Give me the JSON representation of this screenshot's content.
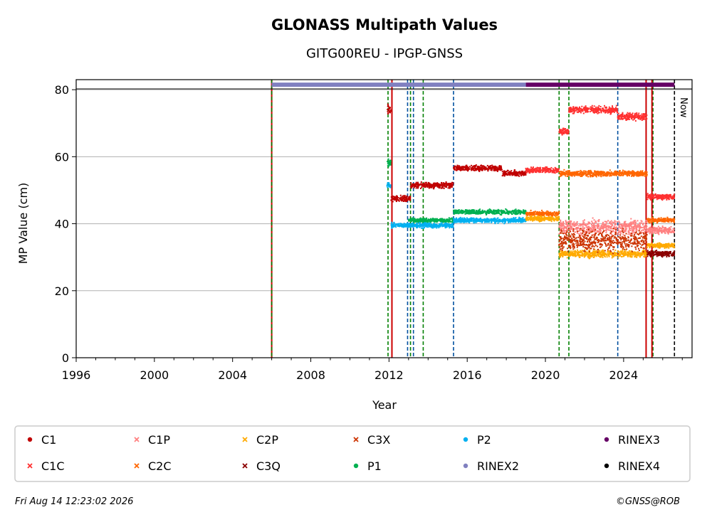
{
  "chart_data": {
    "type": "scatter",
    "title": "GLONASS Multipath Values",
    "subtitle": "GITG00REU - IPGP-GNSS",
    "xlabel": "Year",
    "ylabel": "MP Value (cm)",
    "xlim": [
      1996,
      2027.5
    ],
    "ylim": [
      0,
      83
    ],
    "x_ticks": [
      "1996",
      "2000",
      "2004",
      "2008",
      "2012",
      "2016",
      "2020",
      "2024"
    ],
    "y_ticks": [
      "0",
      "20",
      "40",
      "60",
      "80"
    ],
    "grid": "horizontal",
    "now_label": "Now",
    "now_year": 2026.6,
    "legend": {
      "placement": "bottom",
      "entries": [
        {
          "name": "C1",
          "color": "#c00000",
          "marker": "dot"
        },
        {
          "name": "C1P",
          "color": "#ff8080",
          "marker": "x"
        },
        {
          "name": "C2P",
          "color": "#ffaa00",
          "marker": "x"
        },
        {
          "name": "C3X",
          "color": "#cc3300",
          "marker": "x"
        },
        {
          "name": "P2",
          "color": "#00b0f0",
          "marker": "dot"
        },
        {
          "name": "RINEX3",
          "color": "#660066",
          "marker": "dot"
        },
        {
          "name": "C1C",
          "color": "#ff3030",
          "marker": "x"
        },
        {
          "name": "C2C",
          "color": "#ff6600",
          "marker": "x"
        },
        {
          "name": "C3Q",
          "color": "#8b0000",
          "marker": "x"
        },
        {
          "name": "P1",
          "color": "#00b050",
          "marker": "dot"
        },
        {
          "name": "RINEX2",
          "color": "#8080c0",
          "marker": "dot"
        },
        {
          "name": "RINEX4",
          "color": "#000000",
          "marker": "dot"
        }
      ]
    },
    "series": [
      {
        "name": "C1",
        "color": "#c00000",
        "segments": [
          {
            "x": [
              2011.9,
              2012.1
            ],
            "y": 74,
            "spread": 2.5
          },
          {
            "x": [
              2012.1,
              2013.1
            ],
            "y": 47.5,
            "spread": 1.2
          },
          {
            "x": [
              2013.1,
              2015.3
            ],
            "y": 51.5,
            "spread": 1.2
          },
          {
            "x": [
              2015.3,
              2017.8
            ],
            "y": 56.5,
            "spread": 1.2
          },
          {
            "x": [
              2017.8,
              2019.0
            ],
            "y": 55,
            "spread": 1.2
          }
        ]
      },
      {
        "name": "C1C",
        "color": "#ff3030",
        "segments": [
          {
            "x": [
              2019.0,
              2020.7
            ],
            "y": 56,
            "spread": 1.2
          },
          {
            "x": [
              2020.7,
              2021.2
            ],
            "y": 67.5,
            "spread": 1.5
          },
          {
            "x": [
              2021.2,
              2023.7
            ],
            "y": 74,
            "spread": 1.5
          },
          {
            "x": [
              2023.7,
              2025.2
            ],
            "y": 72,
            "spread": 1.5
          },
          {
            "x": [
              2025.2,
              2026.6
            ],
            "y": 48,
            "spread": 1.2
          }
        ]
      },
      {
        "name": "P1",
        "color": "#00b050",
        "segments": [
          {
            "x": [
              2011.9,
              2012.1
            ],
            "y": 58,
            "spread": 1.5
          },
          {
            "x": [
              2013.0,
              2015.3
            ],
            "y": 41,
            "spread": 0.9
          },
          {
            "x": [
              2015.3,
              2019.0
            ],
            "y": 43.5,
            "spread": 1.0
          }
        ]
      },
      {
        "name": "P2",
        "color": "#00b0f0",
        "segments": [
          {
            "x": [
              2011.9,
              2012.1
            ],
            "y": 51.5,
            "spread": 1.5
          },
          {
            "x": [
              2012.1,
              2015.3
            ],
            "y": 39.5,
            "spread": 1.0
          },
          {
            "x": [
              2015.3,
              2019.0
            ],
            "y": 41,
            "spread": 1.0
          }
        ]
      },
      {
        "name": "C2C",
        "color": "#ff6600",
        "segments": [
          {
            "x": [
              2019.0,
              2020.7
            ],
            "y": 43,
            "spread": 1.0
          },
          {
            "x": [
              2020.7,
              2025.2
            ],
            "y": 55,
            "spread": 1.2
          },
          {
            "x": [
              2025.2,
              2026.6
            ],
            "y": 41,
            "spread": 1.0
          }
        ]
      },
      {
        "name": "C2P",
        "color": "#ffaa00",
        "segments": [
          {
            "x": [
              2019.0,
              2020.7
            ],
            "y": 41.5,
            "spread": 1.0
          },
          {
            "x": [
              2020.7,
              2025.2
            ],
            "y": 31,
            "spread": 1.5
          },
          {
            "x": [
              2025.2,
              2026.6
            ],
            "y": 33.5,
            "spread": 1.0
          }
        ]
      },
      {
        "name": "C1P",
        "color": "#ff8080",
        "segments": [
          {
            "x": [
              2020.7,
              2025.2
            ],
            "y": 39,
            "spread": 3.0
          },
          {
            "x": [
              2025.2,
              2026.6
            ],
            "y": 38,
            "spread": 1.5
          }
        ]
      },
      {
        "name": "C3X",
        "color": "#cc3300",
        "segments": [
          {
            "x": [
              2020.7,
              2025.2
            ],
            "y": 35,
            "spread": 4.5
          }
        ]
      },
      {
        "name": "C3Q",
        "color": "#8b0000",
        "segments": [
          {
            "x": [
              2025.2,
              2026.6
            ],
            "y": 31,
            "spread": 1.2
          }
        ]
      }
    ],
    "rinex_bars": [
      {
        "name": "RINEX2",
        "color": "#8080c0",
        "x": [
          2006.0,
          2019.0
        ],
        "y": 81.5
      },
      {
        "name": "RINEX3",
        "color": "#660066",
        "x": [
          2019.0,
          2026.6
        ],
        "y": 81.5
      }
    ],
    "event_lines": [
      {
        "x": 2006.0,
        "color": "#cc0000",
        "style": "solid"
      },
      {
        "x": 2006.0,
        "color": "#008000",
        "style": "dashed"
      },
      {
        "x": 2012.15,
        "color": "#cc0000",
        "style": "solid"
      },
      {
        "x": 2011.95,
        "color": "#008000",
        "style": "dashed"
      },
      {
        "x": 2012.95,
        "color": "#0050a0",
        "style": "dashed"
      },
      {
        "x": 2013.1,
        "color": "#008000",
        "style": "dashed"
      },
      {
        "x": 2013.25,
        "color": "#0050a0",
        "style": "dashed"
      },
      {
        "x": 2013.75,
        "color": "#008000",
        "style": "dashed"
      },
      {
        "x": 2015.3,
        "color": "#0050a0",
        "style": "dashed"
      },
      {
        "x": 2020.7,
        "color": "#008000",
        "style": "dashed"
      },
      {
        "x": 2021.2,
        "color": "#008000",
        "style": "dashed"
      },
      {
        "x": 2023.7,
        "color": "#0050a0",
        "style": "dashed"
      },
      {
        "x": 2025.15,
        "color": "#cc0000",
        "style": "solid"
      },
      {
        "x": 2025.5,
        "color": "#008000",
        "style": "dashed"
      },
      {
        "x": 2025.45,
        "color": "#cc0000",
        "style": "solid"
      }
    ]
  },
  "footer": {
    "timestamp": "Fri Aug 14 12:23:02 2026",
    "copyright": "©GNSS@ROB"
  }
}
